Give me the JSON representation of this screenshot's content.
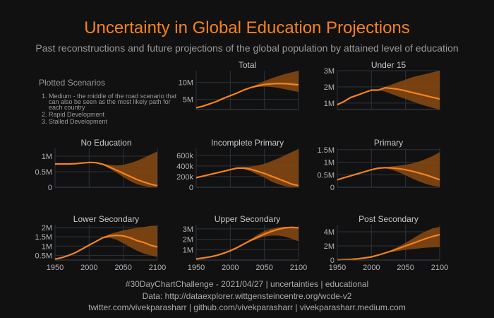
{
  "header": {
    "title": "Uncertainty in Global Education Projections",
    "subtitle": "Past reconstructions and future projections of the global population by attained level of education"
  },
  "scenarios": {
    "title": "Plotted Scenarios",
    "items": [
      "Medium - the middle of the road scenario that can also be seen as the most likely path for each country",
      "Rapid Development",
      "Stalled Development"
    ]
  },
  "footer": {
    "line1": "#30DayChartChallenge - 2021/04/27 | uncertainties | educational",
    "line2": "Data: http://dataexplorer.wittgensteincentre.org/wcde-v2",
    "line3": "twitter.com/vivekparasharr | github.com/vivekparasharr | vivekparasharr.medium.com"
  },
  "colors": {
    "line": "#f58220",
    "band": "#8a4a12",
    "grid": "#2a3340",
    "bg": "#111111"
  },
  "chart_data": [
    {
      "type": "area",
      "title": "Total",
      "x": [
        1950,
        1960,
        1970,
        1980,
        1990,
        2000,
        2010,
        2020,
        2030,
        2040,
        2050,
        2060,
        2070,
        2080,
        2090,
        2100
      ],
      "yticks": [
        5000000,
        10000000
      ],
      "ytick_labels": [
        "5M",
        "10M"
      ],
      "ylim": [
        2000000,
        13500000
      ],
      "median": [
        2500000,
        3000000,
        3700000,
        4400000,
        5300000,
        6100000,
        6900000,
        7800000,
        8500000,
        9000000,
        9400000,
        9600000,
        9700000,
        9650000,
        9500000,
        9300000
      ],
      "upper": [
        2500000,
        3000000,
        3700000,
        4400000,
        5300000,
        6100000,
        6900000,
        7800000,
        8700000,
        9500000,
        10400000,
        11200000,
        11900000,
        12500000,
        13000000,
        13500000
      ],
      "lower": [
        2500000,
        3000000,
        3700000,
        4400000,
        5300000,
        6100000,
        6900000,
        7800000,
        8400000,
        8700000,
        8800000,
        8700000,
        8400000,
        8000000,
        7600000,
        7200000
      ]
    },
    {
      "type": "area",
      "title": "Under 15",
      "x": [
        1950,
        1960,
        1970,
        1980,
        1990,
        2000,
        2010,
        2020,
        2030,
        2040,
        2050,
        2060,
        2070,
        2080,
        2090,
        2100
      ],
      "yticks": [
        1000000,
        2000000,
        3000000
      ],
      "ytick_labels": [
        "1M",
        "2M",
        "3M"
      ],
      "ylim": [
        600000,
        3000000
      ],
      "median": [
        900000,
        1100000,
        1350000,
        1500000,
        1650000,
        1800000,
        1800000,
        1950000,
        1900000,
        1850000,
        1750000,
        1650000,
        1550000,
        1450000,
        1350000,
        1250000
      ],
      "upper": [
        900000,
        1100000,
        1350000,
        1500000,
        1650000,
        1800000,
        1800000,
        2000000,
        2150000,
        2300000,
        2450000,
        2600000,
        2700000,
        2800000,
        2900000,
        3000000
      ],
      "lower": [
        900000,
        1100000,
        1350000,
        1500000,
        1650000,
        1800000,
        1800000,
        1700000,
        1550000,
        1400000,
        1250000,
        1100000,
        950000,
        820000,
        700000,
        600000
      ]
    },
    {
      "type": "area",
      "title": "No Education",
      "x": [
        1950,
        1960,
        1970,
        1980,
        1990,
        2000,
        2010,
        2020,
        2030,
        2040,
        2050,
        2060,
        2070,
        2080,
        2090,
        2100
      ],
      "yticks": [
        0,
        500000,
        1000000
      ],
      "ytick_labels": [
        "0",
        "0.5M",
        "1M"
      ],
      "ylim": [
        0,
        1250000
      ],
      "median": [
        750000,
        750000,
        750000,
        760000,
        780000,
        800000,
        790000,
        740000,
        650000,
        550000,
        450000,
        350000,
        250000,
        170000,
        100000,
        50000
      ],
      "upper": [
        750000,
        750000,
        750000,
        760000,
        780000,
        800000,
        790000,
        760000,
        720000,
        700000,
        720000,
        780000,
        850000,
        950000,
        1050000,
        1150000
      ],
      "lower": [
        750000,
        750000,
        750000,
        760000,
        780000,
        800000,
        790000,
        720000,
        600000,
        470000,
        330000,
        200000,
        100000,
        40000,
        10000,
        0
      ]
    },
    {
      "type": "area",
      "title": "Incomplete Primary",
      "x": [
        1950,
        1960,
        1970,
        1980,
        1990,
        2000,
        2010,
        2020,
        2030,
        2040,
        2050,
        2060,
        2070,
        2080,
        2090,
        2100
      ],
      "yticks": [
        0,
        200000,
        400000,
        600000
      ],
      "ytick_labels": [
        "0",
        "200k",
        "400k",
        "600k"
      ],
      "ylim": [
        0,
        730000
      ],
      "median": [
        180000,
        210000,
        240000,
        270000,
        300000,
        330000,
        360000,
        360000,
        340000,
        300000,
        260000,
        210000,
        160000,
        110000,
        60000,
        30000
      ],
      "upper": [
        180000,
        210000,
        240000,
        270000,
        300000,
        330000,
        360000,
        380000,
        390000,
        410000,
        440000,
        490000,
        540000,
        600000,
        660000,
        720000
      ],
      "lower": [
        180000,
        210000,
        240000,
        270000,
        300000,
        330000,
        360000,
        340000,
        300000,
        240000,
        180000,
        110000,
        60000,
        20000,
        5000,
        0
      ]
    },
    {
      "type": "area",
      "title": "Primary",
      "x": [
        1950,
        1960,
        1970,
        1980,
        1990,
        2000,
        2010,
        2020,
        2030,
        2040,
        2050,
        2060,
        2070,
        2080,
        2090,
        2100
      ],
      "yticks": [
        0,
        500000,
        1000000,
        1500000
      ],
      "ytick_labels": [
        "0",
        "0.5M",
        "1M",
        "1.5M"
      ],
      "ylim": [
        0,
        1550000
      ],
      "median": [
        300000,
        380000,
        460000,
        540000,
        620000,
        700000,
        760000,
        780000,
        770000,
        740000,
        700000,
        640000,
        570000,
        490000,
        400000,
        300000
      ],
      "upper": [
        300000,
        380000,
        460000,
        540000,
        620000,
        700000,
        760000,
        800000,
        830000,
        860000,
        900000,
        950000,
        1030000,
        1130000,
        1250000,
        1400000
      ],
      "lower": [
        300000,
        380000,
        460000,
        540000,
        620000,
        700000,
        760000,
        760000,
        700000,
        600000,
        480000,
        350000,
        230000,
        130000,
        60000,
        20000
      ]
    },
    {
      "type": "area",
      "title": "Lower Secondary",
      "x": [
        1950,
        1960,
        1970,
        1980,
        1990,
        2000,
        2010,
        2020,
        2030,
        2040,
        2050,
        2060,
        2070,
        2080,
        2090,
        2100
      ],
      "yticks": [
        500000,
        1000000,
        1500000,
        2000000
      ],
      "ytick_labels": [
        "0.5M",
        "1M",
        "1.5M",
        "2M"
      ],
      "ylim": [
        250000,
        2150000
      ],
      "median": [
        300000,
        380000,
        500000,
        650000,
        850000,
        1050000,
        1250000,
        1450000,
        1550000,
        1580000,
        1550000,
        1450000,
        1300000,
        1200000,
        1050000,
        950000
      ],
      "upper": [
        300000,
        380000,
        500000,
        650000,
        850000,
        1050000,
        1250000,
        1480000,
        1650000,
        1750000,
        1850000,
        1920000,
        1980000,
        2030000,
        2080000,
        2100000
      ],
      "lower": [
        300000,
        380000,
        500000,
        650000,
        850000,
        1050000,
        1250000,
        1420000,
        1450000,
        1350000,
        1150000,
        950000,
        750000,
        600000,
        500000,
        420000
      ]
    },
    {
      "type": "area",
      "title": "Upper Secondary",
      "x": [
        1950,
        1960,
        1970,
        1980,
        1990,
        2000,
        2010,
        2020,
        2030,
        2040,
        2050,
        2060,
        2070,
        2080,
        2090,
        2100
      ],
      "yticks": [
        1000000,
        2000000,
        3000000
      ],
      "ytick_labels": [
        "1M",
        "2M",
        "3M"
      ],
      "ylim": [
        0,
        3400000
      ],
      "median": [
        100000,
        200000,
        300000,
        450000,
        650000,
        900000,
        1200000,
        1550000,
        1900000,
        2200000,
        2500000,
        2750000,
        2950000,
        3100000,
        3150000,
        3100000
      ],
      "upper": [
        100000,
        200000,
        300000,
        450000,
        650000,
        900000,
        1200000,
        1600000,
        2000000,
        2450000,
        2800000,
        3000000,
        3150000,
        3200000,
        3150000,
        3050000
      ],
      "lower": [
        100000,
        200000,
        300000,
        450000,
        650000,
        900000,
        1200000,
        1500000,
        1800000,
        2050000,
        2250000,
        2350000,
        2350000,
        2250000,
        2050000,
        1800000
      ]
    },
    {
      "type": "area",
      "title": "Post Secondary",
      "x": [
        1950,
        1960,
        1970,
        1980,
        1990,
        2000,
        2010,
        2020,
        2030,
        2040,
        2050,
        2060,
        2070,
        2080,
        2090,
        2100
      ],
      "yticks": [
        0,
        2000000,
        4000000
      ],
      "ytick_labels": [
        "0",
        "2M",
        "4M"
      ],
      "ylim": [
        0,
        5000000
      ],
      "median": [
        30000,
        60000,
        100000,
        180000,
        300000,
        450000,
        700000,
        1000000,
        1300000,
        1650000,
        2000000,
        2350000,
        2700000,
        3050000,
        3350000,
        3600000
      ],
      "upper": [
        30000,
        60000,
        100000,
        180000,
        300000,
        450000,
        700000,
        1050000,
        1450000,
        1900000,
        2450000,
        3000000,
        3600000,
        4100000,
        4500000,
        4700000
      ],
      "lower": [
        30000,
        60000,
        100000,
        180000,
        300000,
        450000,
        700000,
        950000,
        1150000,
        1300000,
        1450000,
        1550000,
        1650000,
        1750000,
        1800000,
        1850000
      ]
    }
  ],
  "xaxis": {
    "range": [
      1950,
      2100
    ],
    "ticks": [
      1950,
      2000,
      2050,
      2100
    ],
    "tick_labels": [
      "1950",
      "2000",
      "2050",
      "2100"
    ]
  }
}
